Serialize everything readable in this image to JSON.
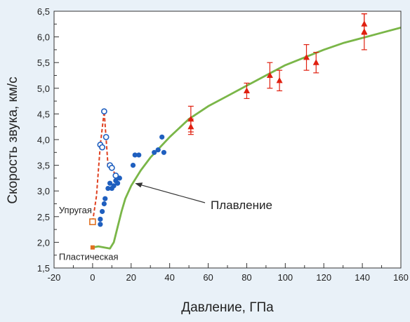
{
  "chart_data": {
    "type": "scatter",
    "xlabel": "Давление, ГПа",
    "ylabel": "Скорость звука, км/с",
    "xlim": [
      -20,
      160
    ],
    "ylim": [
      1.5,
      6.5
    ],
    "xticks": [
      -20,
      0,
      20,
      40,
      60,
      80,
      100,
      120,
      140,
      160
    ],
    "xtick_labels": [
      "-20",
      "0",
      "20",
      "40",
      "60",
      "80",
      "100",
      "120",
      "140",
      "160"
    ],
    "yticks": [
      1.5,
      2.0,
      2.5,
      3.0,
      3.5,
      4.0,
      4.5,
      5.0,
      5.5,
      6.0,
      6.5
    ],
    "ytick_labels": [
      "1,5",
      "2,0",
      "2,5",
      "3,0",
      "3,5",
      "4,0",
      "4,5",
      "5,0",
      "5,5",
      "6,0",
      "6,5"
    ],
    "grid": false,
    "series": [
      {
        "marker": "filled-circle",
        "color": "#1f5fbf",
        "x": [
          4,
          4,
          5,
          6,
          6.5,
          8,
          9,
          10,
          11,
          12,
          13,
          14,
          21,
          22,
          24,
          32,
          34,
          36,
          37
        ],
        "y": [
          2.35,
          2.45,
          2.6,
          2.75,
          2.85,
          3.05,
          3.15,
          3.05,
          3.1,
          3.2,
          3.15,
          3.25,
          3.5,
          3.7,
          3.7,
          3.75,
          3.8,
          4.05,
          3.75
        ]
      },
      {
        "marker": "open-circle",
        "color": "#1f5fbf",
        "x": [
          4,
          5,
          6,
          7,
          9,
          10,
          12
        ],
        "y": [
          3.9,
          3.85,
          4.55,
          4.05,
          3.5,
          3.45,
          3.3
        ]
      },
      {
        "marker": "triangle-errorbar",
        "color": "#e02010",
        "x": [
          51,
          51,
          80,
          92,
          97,
          111,
          116,
          141,
          141
        ],
        "y": [
          4.4,
          4.25,
          4.95,
          5.25,
          5.15,
          5.6,
          5.5,
          6.25,
          6.1
        ],
        "err": [
          0.25,
          0.15,
          0.15,
          0.25,
          0.2,
          0.25,
          0.2,
          0.2,
          0.35
        ]
      },
      {
        "marker": "line",
        "style": "dashed",
        "color": "#e04020",
        "x": [
          0,
          2,
          4,
          6,
          8,
          10,
          12
        ],
        "y": [
          2.4,
          2.9,
          3.9,
          4.55,
          3.5,
          3.45,
          3.3
        ]
      },
      {
        "marker": "open-square",
        "color": "#e07020",
        "x": [
          0
        ],
        "y": [
          2.4
        ]
      },
      {
        "marker": "filled-square",
        "color": "#e07020",
        "x": [
          0
        ],
        "y": [
          1.9
        ]
      },
      {
        "marker": "line",
        "style": "solid",
        "color": "#7ab648",
        "x": [
          0,
          3,
          6,
          9,
          11,
          13,
          15,
          17,
          20,
          25,
          30,
          35,
          40,
          50,
          60,
          70,
          80,
          90,
          100,
          110,
          120,
          130,
          140,
          150,
          160
        ],
        "y": [
          1.9,
          1.92,
          1.9,
          1.88,
          2.0,
          2.3,
          2.6,
          2.85,
          3.1,
          3.4,
          3.65,
          3.85,
          4.05,
          4.4,
          4.65,
          4.85,
          5.05,
          5.25,
          5.45,
          5.6,
          5.75,
          5.88,
          5.98,
          6.08,
          6.18
        ]
      }
    ],
    "annotations": {
      "elastic": {
        "text": "Упругая",
        "x": 0,
        "y": 2.4
      },
      "plastic": {
        "text": "Пластическая",
        "x": 0,
        "y": 1.9
      },
      "melting": {
        "text": "Плавление",
        "x": 22,
        "y": 3.15
      }
    }
  }
}
